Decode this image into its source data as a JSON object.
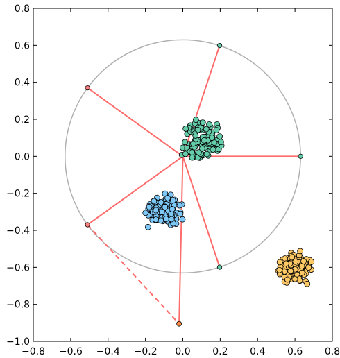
{
  "chart_data": {
    "type": "scatter",
    "xlim": [
      -0.8,
      0.8
    ],
    "ylim": [
      -1.0,
      0.8
    ],
    "xticks": [
      -0.8,
      -0.6,
      -0.4,
      -0.2,
      0.0,
      0.2,
      0.4,
      0.6,
      0.8
    ],
    "yticks": [
      -1.0,
      -0.8,
      -0.6,
      -0.4,
      -0.2,
      0.0,
      0.2,
      0.4,
      0.6,
      0.8
    ],
    "xtick_labels": [
      "−0.8",
      "−0.6",
      "−0.4",
      "−0.2",
      "0.0",
      "0.2",
      "0.4",
      "0.6",
      "0.8"
    ],
    "ytick_labels": [
      "−1.0",
      "−0.8",
      "−0.6",
      "−0.4",
      "−0.2",
      "0.0",
      "0.2",
      "0.4",
      "0.6",
      "0.8"
    ],
    "grid": false,
    "circle": {
      "center": [
        0.0,
        0.0
      ],
      "radius": 0.63,
      "color": "#b0b0b0"
    },
    "origin": [
      0.0,
      0.0
    ],
    "anchors": [
      {
        "x": 0.197,
        "y": 0.599,
        "color": "#66cdaa"
      },
      {
        "x": 0.63,
        "y": 0.0,
        "color": "#66cdaa"
      },
      {
        "x": 0.197,
        "y": -0.599,
        "color": "#66cdaa"
      },
      {
        "x": -0.51,
        "y": 0.37,
        "color": "#ff7f7f"
      },
      {
        "x": -0.51,
        "y": -0.37,
        "color": "#ff7f7f"
      }
    ],
    "outlier": {
      "x": -0.02,
      "y": -0.905,
      "color": "#ff8c42"
    },
    "spokes_color": "#ff6b6b",
    "dashed_link": {
      "from": [
        -0.51,
        -0.37
      ],
      "to": [
        -0.02,
        -0.905
      ]
    },
    "clusters": [
      {
        "name": "",
        "color": "#66cdaa",
        "center": [
          0.1,
          0.09
        ],
        "spread": [
          0.055,
          0.055
        ],
        "count": 120
      },
      {
        "name": "",
        "color": "#7ec8f8",
        "center": [
          -0.1,
          -0.3
        ],
        "spread": [
          0.05,
          0.05
        ],
        "count": 110
      },
      {
        "name": "",
        "color": "#ffc966",
        "center": [
          0.6,
          -0.6
        ],
        "spread": [
          0.045,
          0.045
        ],
        "count": 110
      }
    ]
  }
}
